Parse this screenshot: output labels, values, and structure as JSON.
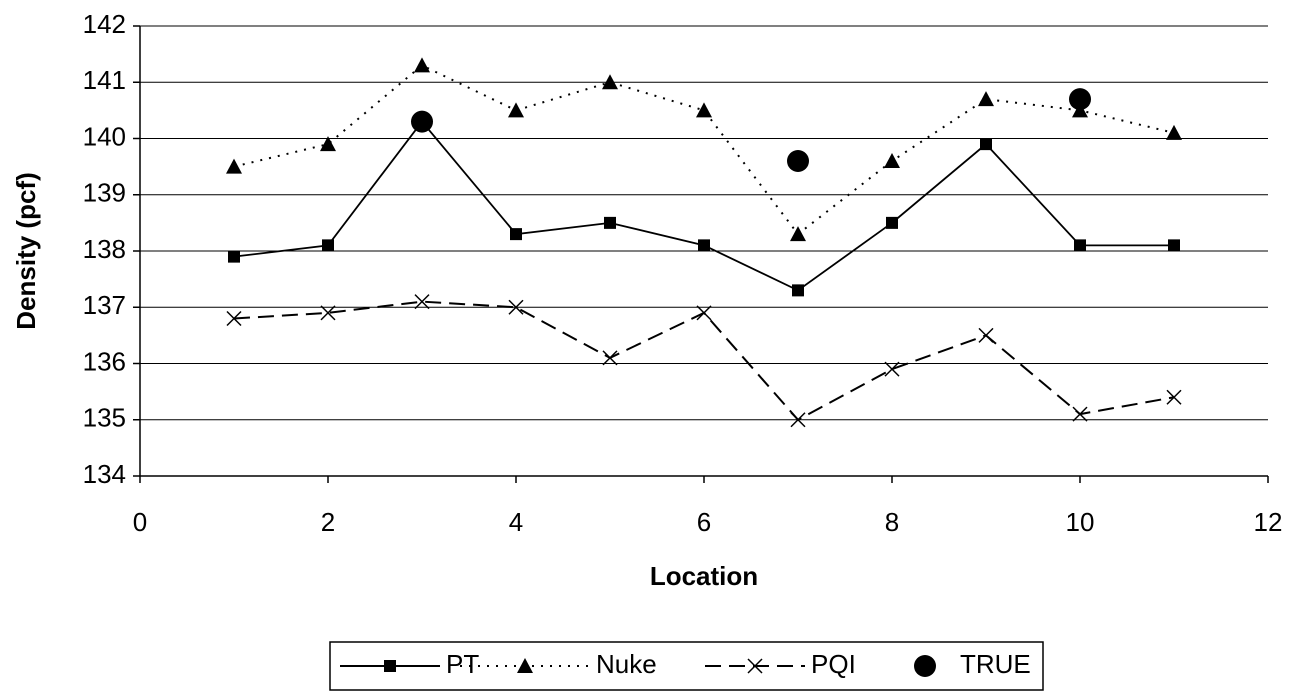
{
  "chart_data": {
    "type": "line",
    "x_label": "Location",
    "y_label": "Density (pcf)",
    "xlim": [
      0,
      12
    ],
    "xticks": [
      0,
      2,
      4,
      6,
      8,
      10,
      12
    ],
    "ylim": [
      134,
      142
    ],
    "yticks": [
      134,
      135,
      136,
      137,
      138,
      139,
      140,
      141,
      142
    ],
    "grid": true,
    "legend": "bottom",
    "series": [
      {
        "name": "PT",
        "color": "#000000",
        "line": "solid",
        "marker": "square",
        "x": [
          1,
          2,
          3,
          4,
          5,
          6,
          7,
          8,
          9,
          10,
          11
        ],
        "values": [
          137.9,
          138.1,
          140.3,
          138.3,
          138.5,
          138.1,
          137.3,
          138.5,
          139.9,
          138.1,
          138.1
        ]
      },
      {
        "name": "Nuke",
        "color": "#000000",
        "line": "dotted",
        "marker": "triangle",
        "x": [
          1,
          2,
          3,
          4,
          5,
          6,
          7,
          8,
          9,
          10,
          11
        ],
        "values": [
          139.5,
          139.9,
          141.3,
          140.5,
          141.0,
          140.5,
          138.3,
          139.6,
          140.7,
          140.5,
          140.1
        ]
      },
      {
        "name": "PQI",
        "color": "#000000",
        "line": "dashed",
        "marker": "x",
        "x": [
          1,
          2,
          3,
          4,
          5,
          6,
          7,
          8,
          9,
          10,
          11
        ],
        "values": [
          136.8,
          136.9,
          137.1,
          137.0,
          136.1,
          136.9,
          135.0,
          135.9,
          136.5,
          135.1,
          135.4
        ]
      },
      {
        "name": "TRUE",
        "color": "#000000",
        "line": "none",
        "marker": "circle",
        "x": [
          3,
          7,
          10
        ],
        "values": [
          140.3,
          139.6,
          140.7
        ]
      }
    ]
  }
}
